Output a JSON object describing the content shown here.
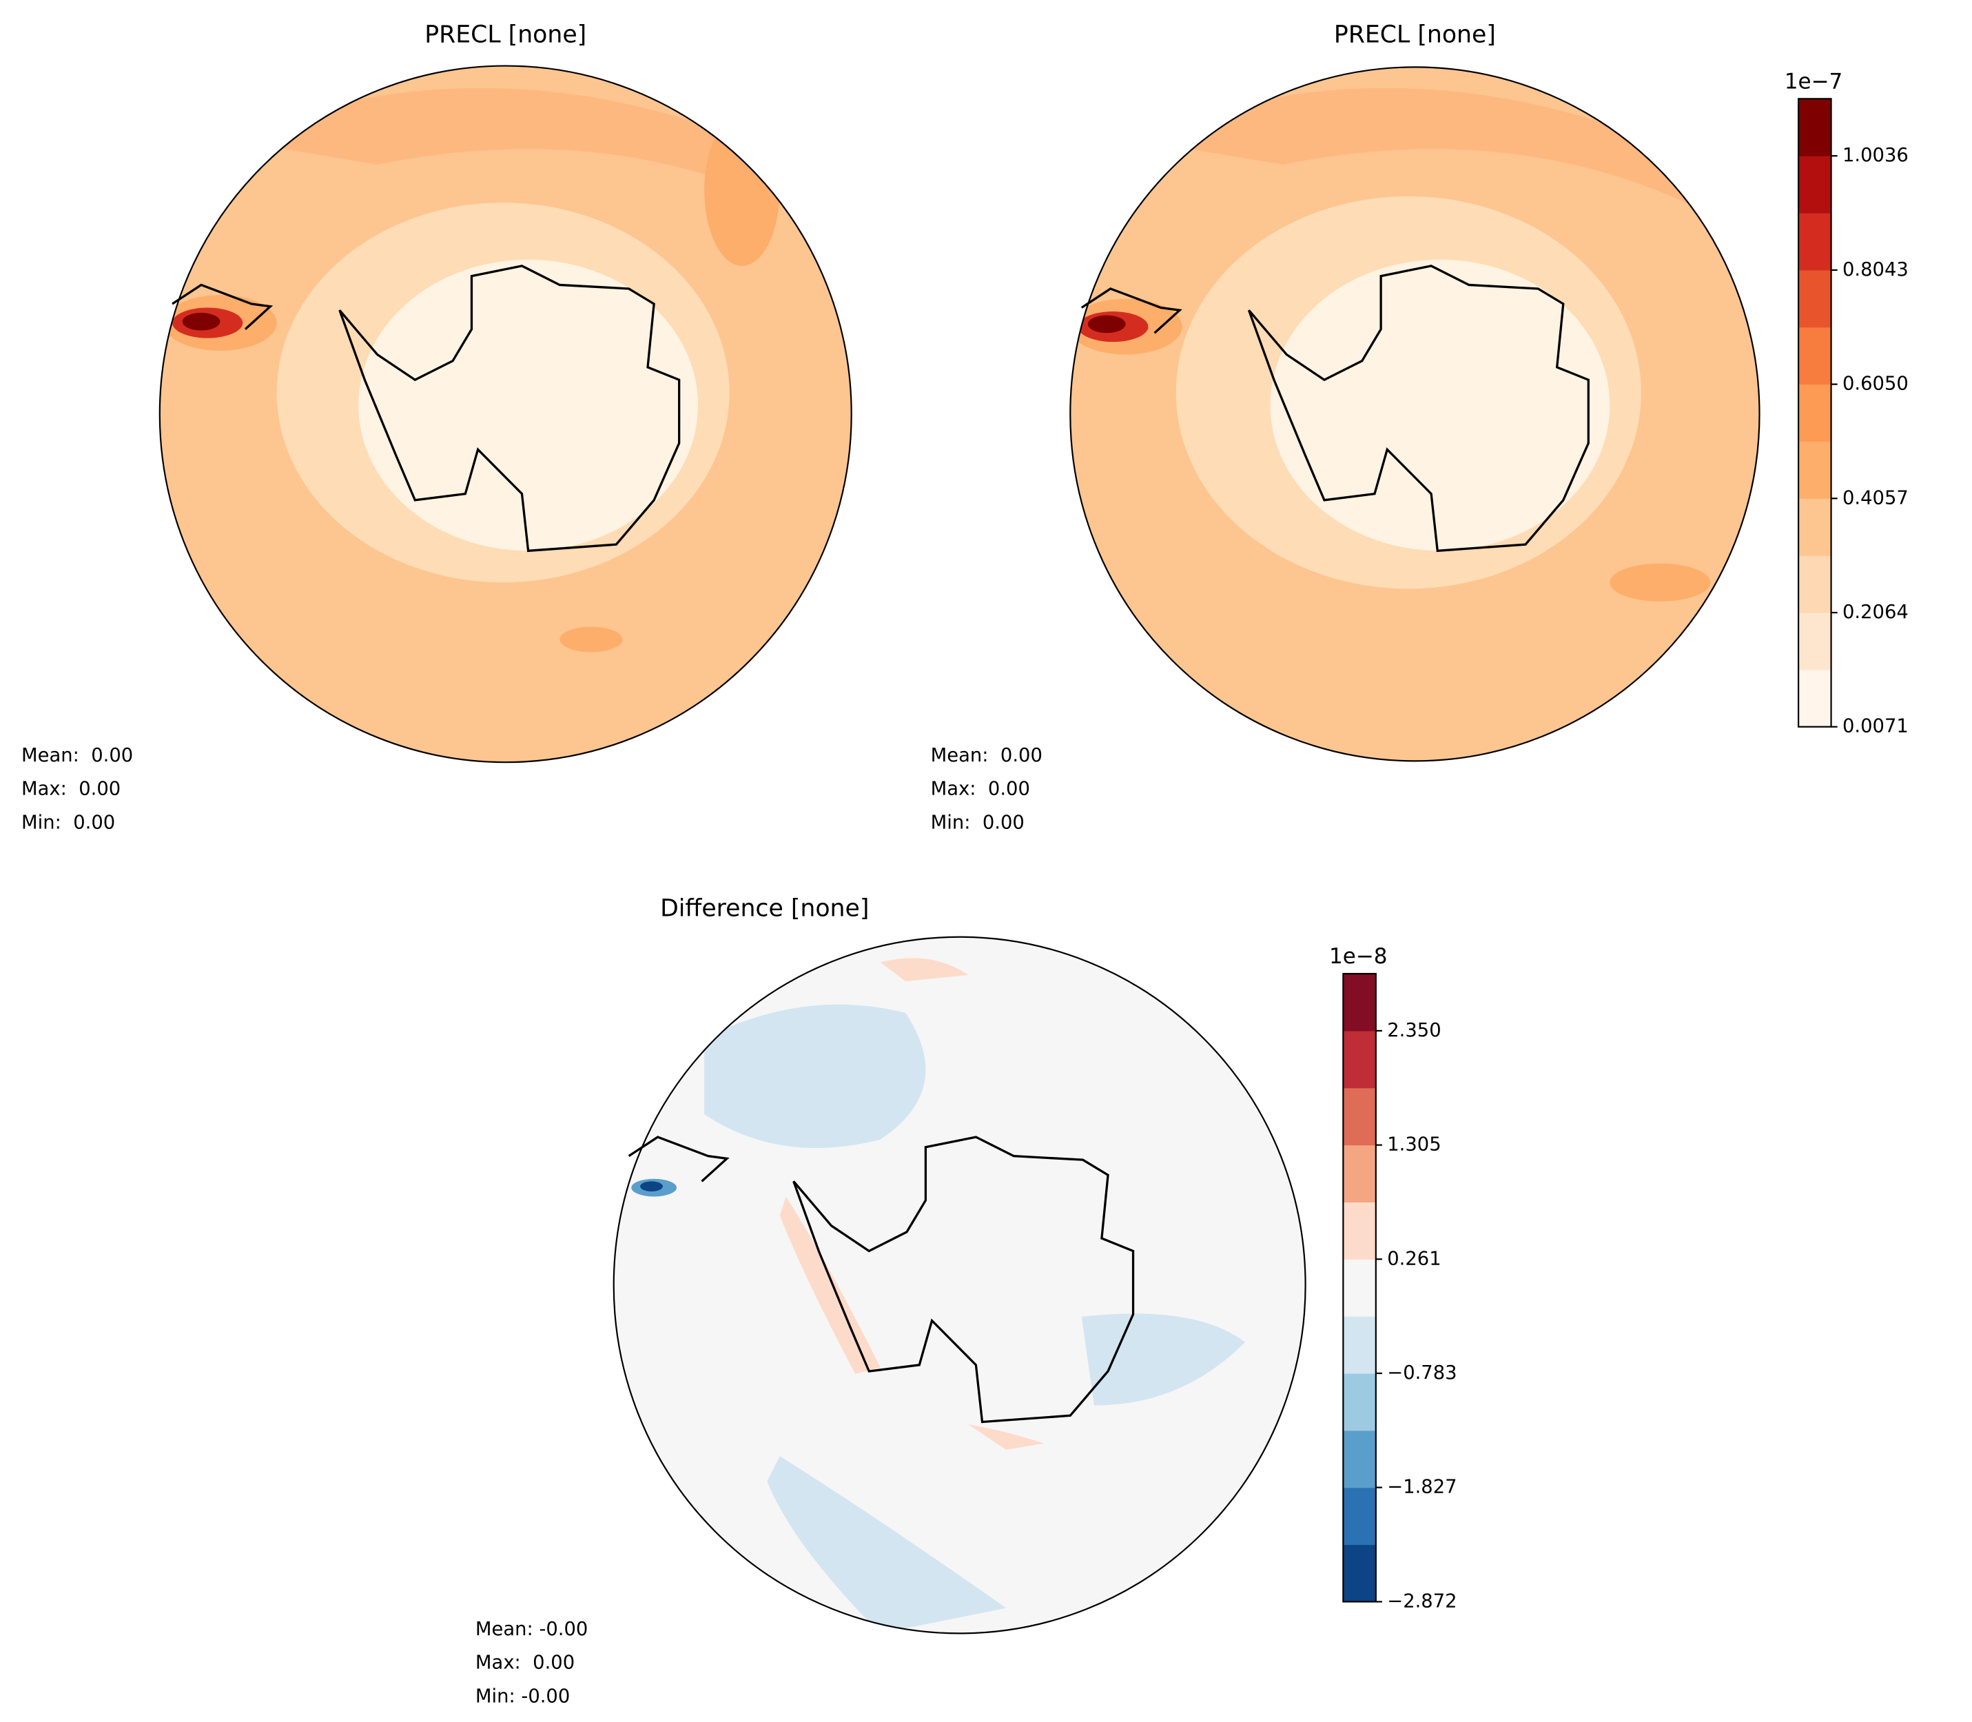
{
  "panels": [
    {
      "title": "PRECL [none]",
      "stats": [
        "Mean:  0.00",
        "Max:  0.00",
        "Min:  0.00"
      ]
    },
    {
      "title": "PRECL [none]",
      "stats": [
        "Mean:  0.00",
        "Max:  0.00",
        "Min:  0.00"
      ],
      "colorbar": {
        "exponent": "1e−7",
        "lim": [
          0.0071,
          1.1033
        ],
        "ticks": [
          0.0071,
          0.2064,
          0.4057,
          {
            "value": 0.605,
            "label": "0.6050"
          },
          0.8043,
          1.0036
        ],
        "colors": [
          "#fff5eb",
          "#fee6ce",
          "#fdd8b2",
          "#fdc590",
          "#fdae6b",
          "#fd9a54",
          "#f67d3e",
          "#e8552d",
          "#d42d20",
          "#b30f0f",
          "#7f0000"
        ]
      }
    },
    {
      "title": "Difference [none]",
      "stats": [
        "Mean: -0.00",
        "Max:  0.00",
        "Min: -0.00"
      ],
      "colorbar": {
        "exponent": "1e−8",
        "lim": [
          -2.872,
          2.872
        ],
        "ticks": [
          {
            "value": -2.872,
            "label": "−2.872"
          },
          {
            "value": -1.827,
            "label": "−1.827"
          },
          {
            "value": -0.783,
            "label": "−0.783"
          },
          0.261,
          1.305,
          {
            "value": 2.35,
            "label": "2.350"
          }
        ],
        "colors": [
          "#0c4485",
          "#2a72b3",
          "#5a9fcc",
          "#9dcae1",
          "#d3e5f1",
          "#f6f6f6",
          "#fddbca",
          "#f4a683",
          "#de6c56",
          "#bf2d36",
          "#820d24"
        ]
      }
    }
  ]
}
